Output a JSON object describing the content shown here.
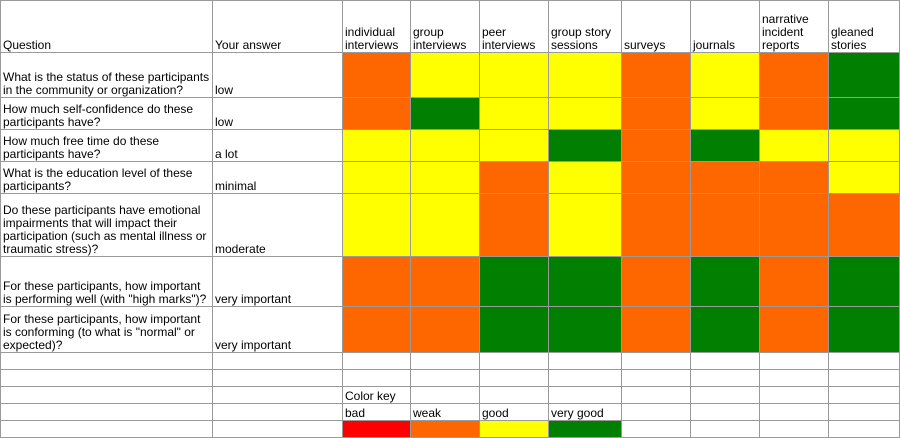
{
  "header": {
    "question": "Question",
    "answer": "Your answer",
    "methods": [
      "individual interviews",
      "group interviews",
      "peer interviews",
      "group story sessions",
      "surveys",
      "journals",
      "narrative incident reports",
      "gleaned stories"
    ]
  },
  "rows": [
    {
      "question": "What is the status of these participants in the community or organization?",
      "answer": "low"
    },
    {
      "question": "How much self-confidence do these participants have?",
      "answer": "low"
    },
    {
      "question": "How much free time do these participants have?",
      "answer": "a lot"
    },
    {
      "question": "What is the education level of these participants?",
      "answer": "minimal"
    },
    {
      "question": "Do these participants have emotional impairments that will impact their participation (such as mental illness or traumatic stress)?",
      "answer": "moderate"
    },
    {
      "question": "For these participants, how important is performing well (with \"high marks\")?",
      "answer": "very important"
    },
    {
      "question": "For these participants, how important is conforming (to what is \"normal\" or expected)?",
      "answer": "very important"
    }
  ],
  "ratings": [
    [
      "weak",
      "good",
      "good",
      "good",
      "weak",
      "good",
      "weak",
      "very good"
    ],
    [
      "weak",
      "very good",
      "good",
      "good",
      "weak",
      "good",
      "weak",
      "very good"
    ],
    [
      "good",
      "good",
      "good",
      "very good",
      "weak",
      "very good",
      "good",
      "good"
    ],
    [
      "good",
      "good",
      "weak",
      "good",
      "weak",
      "weak",
      "weak",
      "good"
    ],
    [
      "good",
      "good",
      "weak",
      "good",
      "weak",
      "weak",
      "weak",
      "weak"
    ],
    [
      "weak",
      "weak",
      "very good",
      "very good",
      "weak",
      "very good",
      "weak",
      "very good"
    ],
    [
      "weak",
      "weak",
      "very good",
      "very good",
      "weak",
      "very good",
      "weak",
      "very good"
    ]
  ],
  "legend": {
    "title": "Color key",
    "items": [
      {
        "label": "bad",
        "color": "#ff0000"
      },
      {
        "label": "weak",
        "color": "#fe6600"
      },
      {
        "label": "good",
        "color": "#ffff00"
      },
      {
        "label": "very good",
        "color": "#007f00"
      }
    ]
  },
  "colors": {
    "bad": "#ff0000",
    "weak": "#fe6600",
    "good": "#ffff00",
    "very good": "#007f00"
  }
}
